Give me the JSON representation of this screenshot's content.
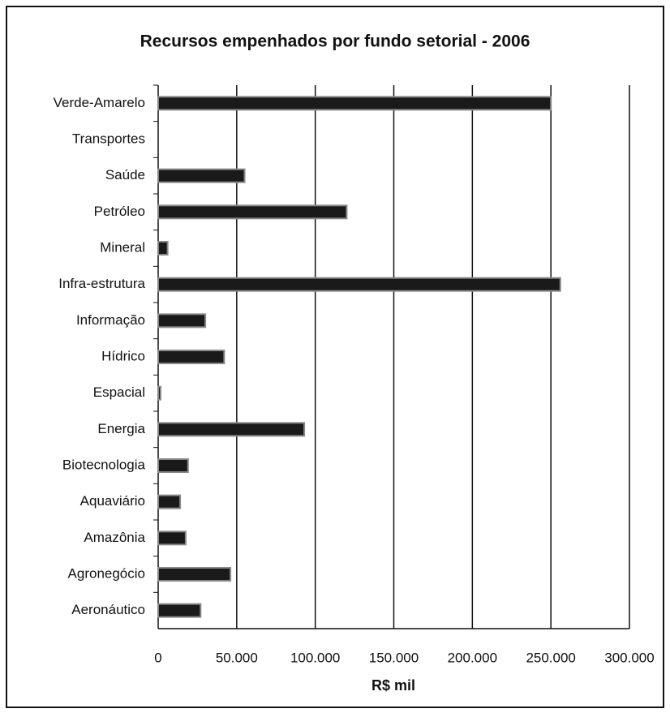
{
  "chart_data": {
    "type": "bar",
    "orientation": "horizontal",
    "title": "Recursos empenhados por fundo setorial - 2006",
    "x_label": "R$ mil",
    "categories": [
      "Verde-Amarelo",
      "Transportes",
      "Saúde",
      "Petróleo",
      "Mineral",
      "Infra-estrutura",
      "Informação",
      "Hídrico",
      "Espacial",
      "Energia",
      "Biotecnologia",
      "Aquaviário",
      "Amazônia",
      "Agronegócio",
      "Aeronáutico"
    ],
    "values": [
      250000,
      0,
      55000,
      120000,
      6000,
      256000,
      30000,
      42000,
      1500,
      93000,
      19000,
      14000,
      17500,
      46000,
      27000
    ],
    "color": "#1a1a1a",
    "xlim": [
      0,
      300000
    ],
    "xticks": [
      0,
      {
        "value": 50000,
        "label": "50.000"
      },
      {
        "value": 100000,
        "label": "100.000"
      },
      {
        "value": 150000,
        "label": "150.000"
      },
      {
        "value": 200000,
        "label": "200.000"
      },
      {
        "value": 250000,
        "label": "250.000"
      },
      {
        "value": 300000,
        "label": "300.000"
      }
    ],
    "grid": true
  }
}
